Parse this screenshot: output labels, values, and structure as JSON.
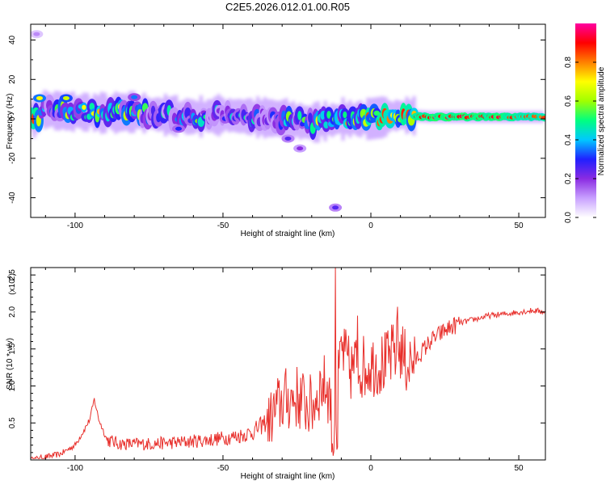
{
  "chart_data": [
    {
      "type": "heatmap",
      "title": "C2E5.2026.012.01.00.R05",
      "xlabel": "Height of straight line (km)",
      "ylabel": "Frequency (Hz)",
      "xlim": [
        -115,
        59
      ],
      "ylim": [
        -50,
        48
      ],
      "xticks": [
        -100,
        -50,
        0,
        50
      ],
      "yticks": [
        -40,
        -20,
        0,
        20,
        40
      ],
      "colorbar": {
        "label": "Normalized spectral amplitude",
        "range": [
          0,
          1
        ],
        "ticks": [
          "0.0",
          "0.2",
          "0.4",
          "0.6",
          "0.8"
        ],
        "colors": [
          "#ffffff",
          "#c8a0ff",
          "#8a2be2",
          "#2020ff",
          "#00c8ff",
          "#00ff80",
          "#a0ff00",
          "#ffff00",
          "#ff8000",
          "#ff0000",
          "#ff00a0"
        ]
      },
      "ridge": [
        {
          "x": -112,
          "y": 5,
          "amp": 0.6
        },
        {
          "x": -105,
          "y": 4,
          "amp": 0.7
        },
        {
          "x": -98,
          "y": 3.5,
          "amp": 0.75
        },
        {
          "x": -90,
          "y": 3,
          "amp": 0.8
        },
        {
          "x": -80,
          "y": 3.5,
          "amp": 0.65
        },
        {
          "x": -70,
          "y": 2,
          "amp": 0.55
        },
        {
          "x": -60,
          "y": 1,
          "amp": 0.6
        },
        {
          "x": -50,
          "y": 2,
          "amp": 0.55
        },
        {
          "x": -40,
          "y": 1,
          "amp": 0.55
        },
        {
          "x": -30,
          "y": 0,
          "amp": 0.6
        },
        {
          "x": -20,
          "y": -2,
          "amp": 0.7
        },
        {
          "x": -10,
          "y": 0,
          "amp": 0.8
        },
        {
          "x": 0,
          "y": 0,
          "amp": 0.85
        },
        {
          "x": 10,
          "y": 2,
          "amp": 0.9
        },
        {
          "x": 20,
          "y": 1,
          "amp": 0.95
        },
        {
          "x": 40,
          "y": 1,
          "amp": 0.95
        },
        {
          "x": 59,
          "y": 1,
          "amp": 0.9
        }
      ],
      "spots": [
        {
          "x": -112,
          "y": 10.5,
          "amp": 0.7
        },
        {
          "x": -103,
          "y": 10.5,
          "amp": 0.65
        },
        {
          "x": -113,
          "y": 43,
          "amp": 0.12
        },
        {
          "x": -80,
          "y": 11,
          "amp": 0.35
        },
        {
          "x": -65,
          "y": -5,
          "amp": 0.3
        },
        {
          "x": -28,
          "y": -10,
          "amp": 0.25
        },
        {
          "x": -24,
          "y": -15,
          "amp": 0.2
        },
        {
          "x": -12,
          "y": -45,
          "amp": 0.25
        }
      ]
    },
    {
      "type": "line",
      "xlabel": "Height of straight line (km)",
      "ylabel": "SNR (10 * v/v)",
      "yscale_label": "(x10",
      "yscale_exp": "4",
      "xlim": [
        -115,
        59
      ],
      "ylim": [
        0,
        2.6
      ],
      "xticks": [
        -100,
        -50,
        0,
        50
      ],
      "yticks": [
        "0.5",
        "1.0",
        "1.5",
        "2.0",
        "2.5"
      ],
      "series": [
        {
          "name": "SNR",
          "color": "#e8302c",
          "x": [
            -115,
            -105,
            -100,
            -97,
            -95,
            -93.5,
            -92,
            -89,
            -85,
            -75,
            -65,
            -55,
            -45,
            -40,
            -35,
            -30,
            -25,
            -20,
            -17,
            -15,
            -12,
            -10,
            -7,
            -5,
            -2,
            0,
            5,
            8,
            10,
            12,
            15,
            20,
            25,
            30,
            35,
            40,
            45,
            50,
            55,
            59
          ],
          "y": [
            0.0,
            0.08,
            0.2,
            0.4,
            0.55,
            0.82,
            0.55,
            0.25,
            0.2,
            0.2,
            0.22,
            0.25,
            0.3,
            0.35,
            0.5,
            0.8,
            0.85,
            0.7,
            1.0,
            1.0,
            0.6,
            1.5,
            1.2,
            1.3,
            1.25,
            1.3,
            1.3,
            1.45,
            1.5,
            1.3,
            1.35,
            1.6,
            1.75,
            1.85,
            1.9,
            1.95,
            1.97,
            2.0,
            2.02,
            2.0
          ],
          "peaks": [
            {
              "x": -12,
              "y": 2.6
            },
            {
              "x": -4.5,
              "y": 1.95
            },
            {
              "x": 9,
              "y": 2.07
            }
          ]
        }
      ]
    }
  ]
}
